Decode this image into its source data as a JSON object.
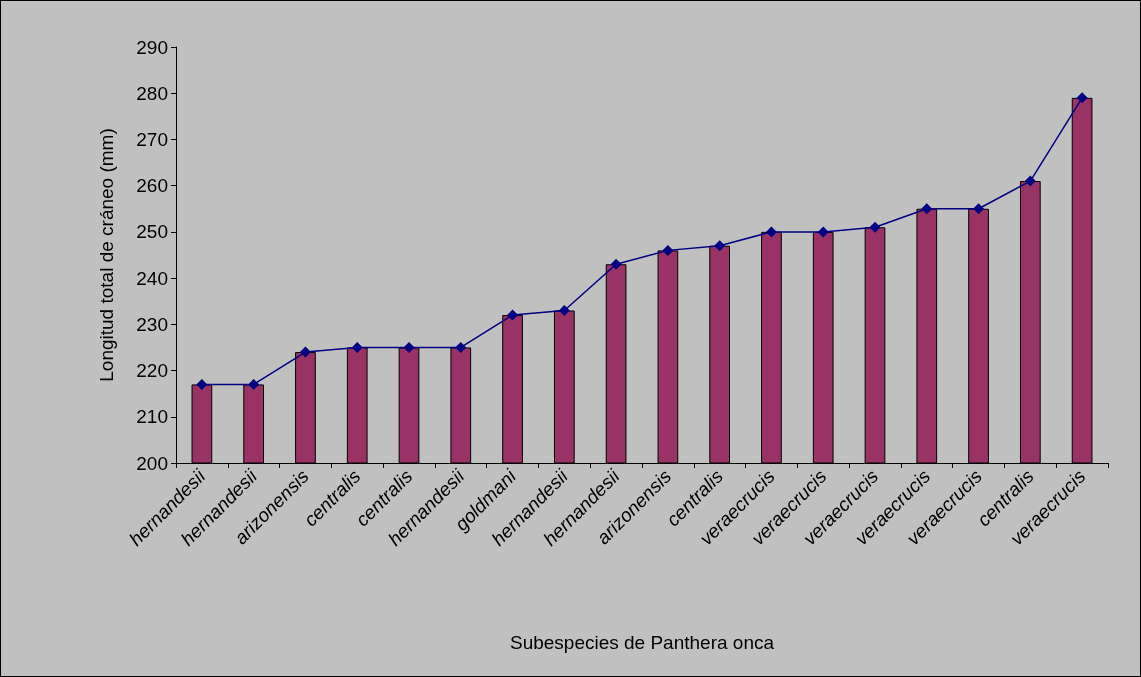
{
  "chart_data": {
    "type": "bar",
    "xlabel": "Subespecies de Panthera onca",
    "ylabel": "Longitud total de cráneo (mm)",
    "categories": [
      "hernandesii",
      "hernandesii",
      "arizonensis",
      "centralis",
      "centralis",
      "hernandesii",
      "goldmani",
      "hernandesii",
      "hernandesii",
      "arizonensis",
      "centralis",
      "veraecrucis",
      "veraecrucis",
      "veraecrucis",
      "veraecrucis",
      "veraecrucis",
      "centralis",
      "veraecrucis"
    ],
    "series": [
      {
        "color": "#993366",
        "values": [
          217,
          217,
          224,
          225,
          225,
          225,
          232,
          233,
          243,
          246,
          247,
          250,
          250,
          251,
          255,
          255,
          261,
          279
        ]
      },
      {
        "type": "line",
        "color": "#000080",
        "marker": "diamond",
        "values": [
          217,
          217,
          224,
          225,
          225,
          225,
          232,
          233,
          243,
          246,
          247,
          250,
          250,
          251,
          255,
          255,
          261,
          279
        ]
      }
    ],
    "ylim": [
      200,
      290
    ],
    "yticks": [
      200,
      210,
      220,
      230,
      240,
      250,
      260,
      270,
      280,
      290
    ],
    "grid": false
  }
}
